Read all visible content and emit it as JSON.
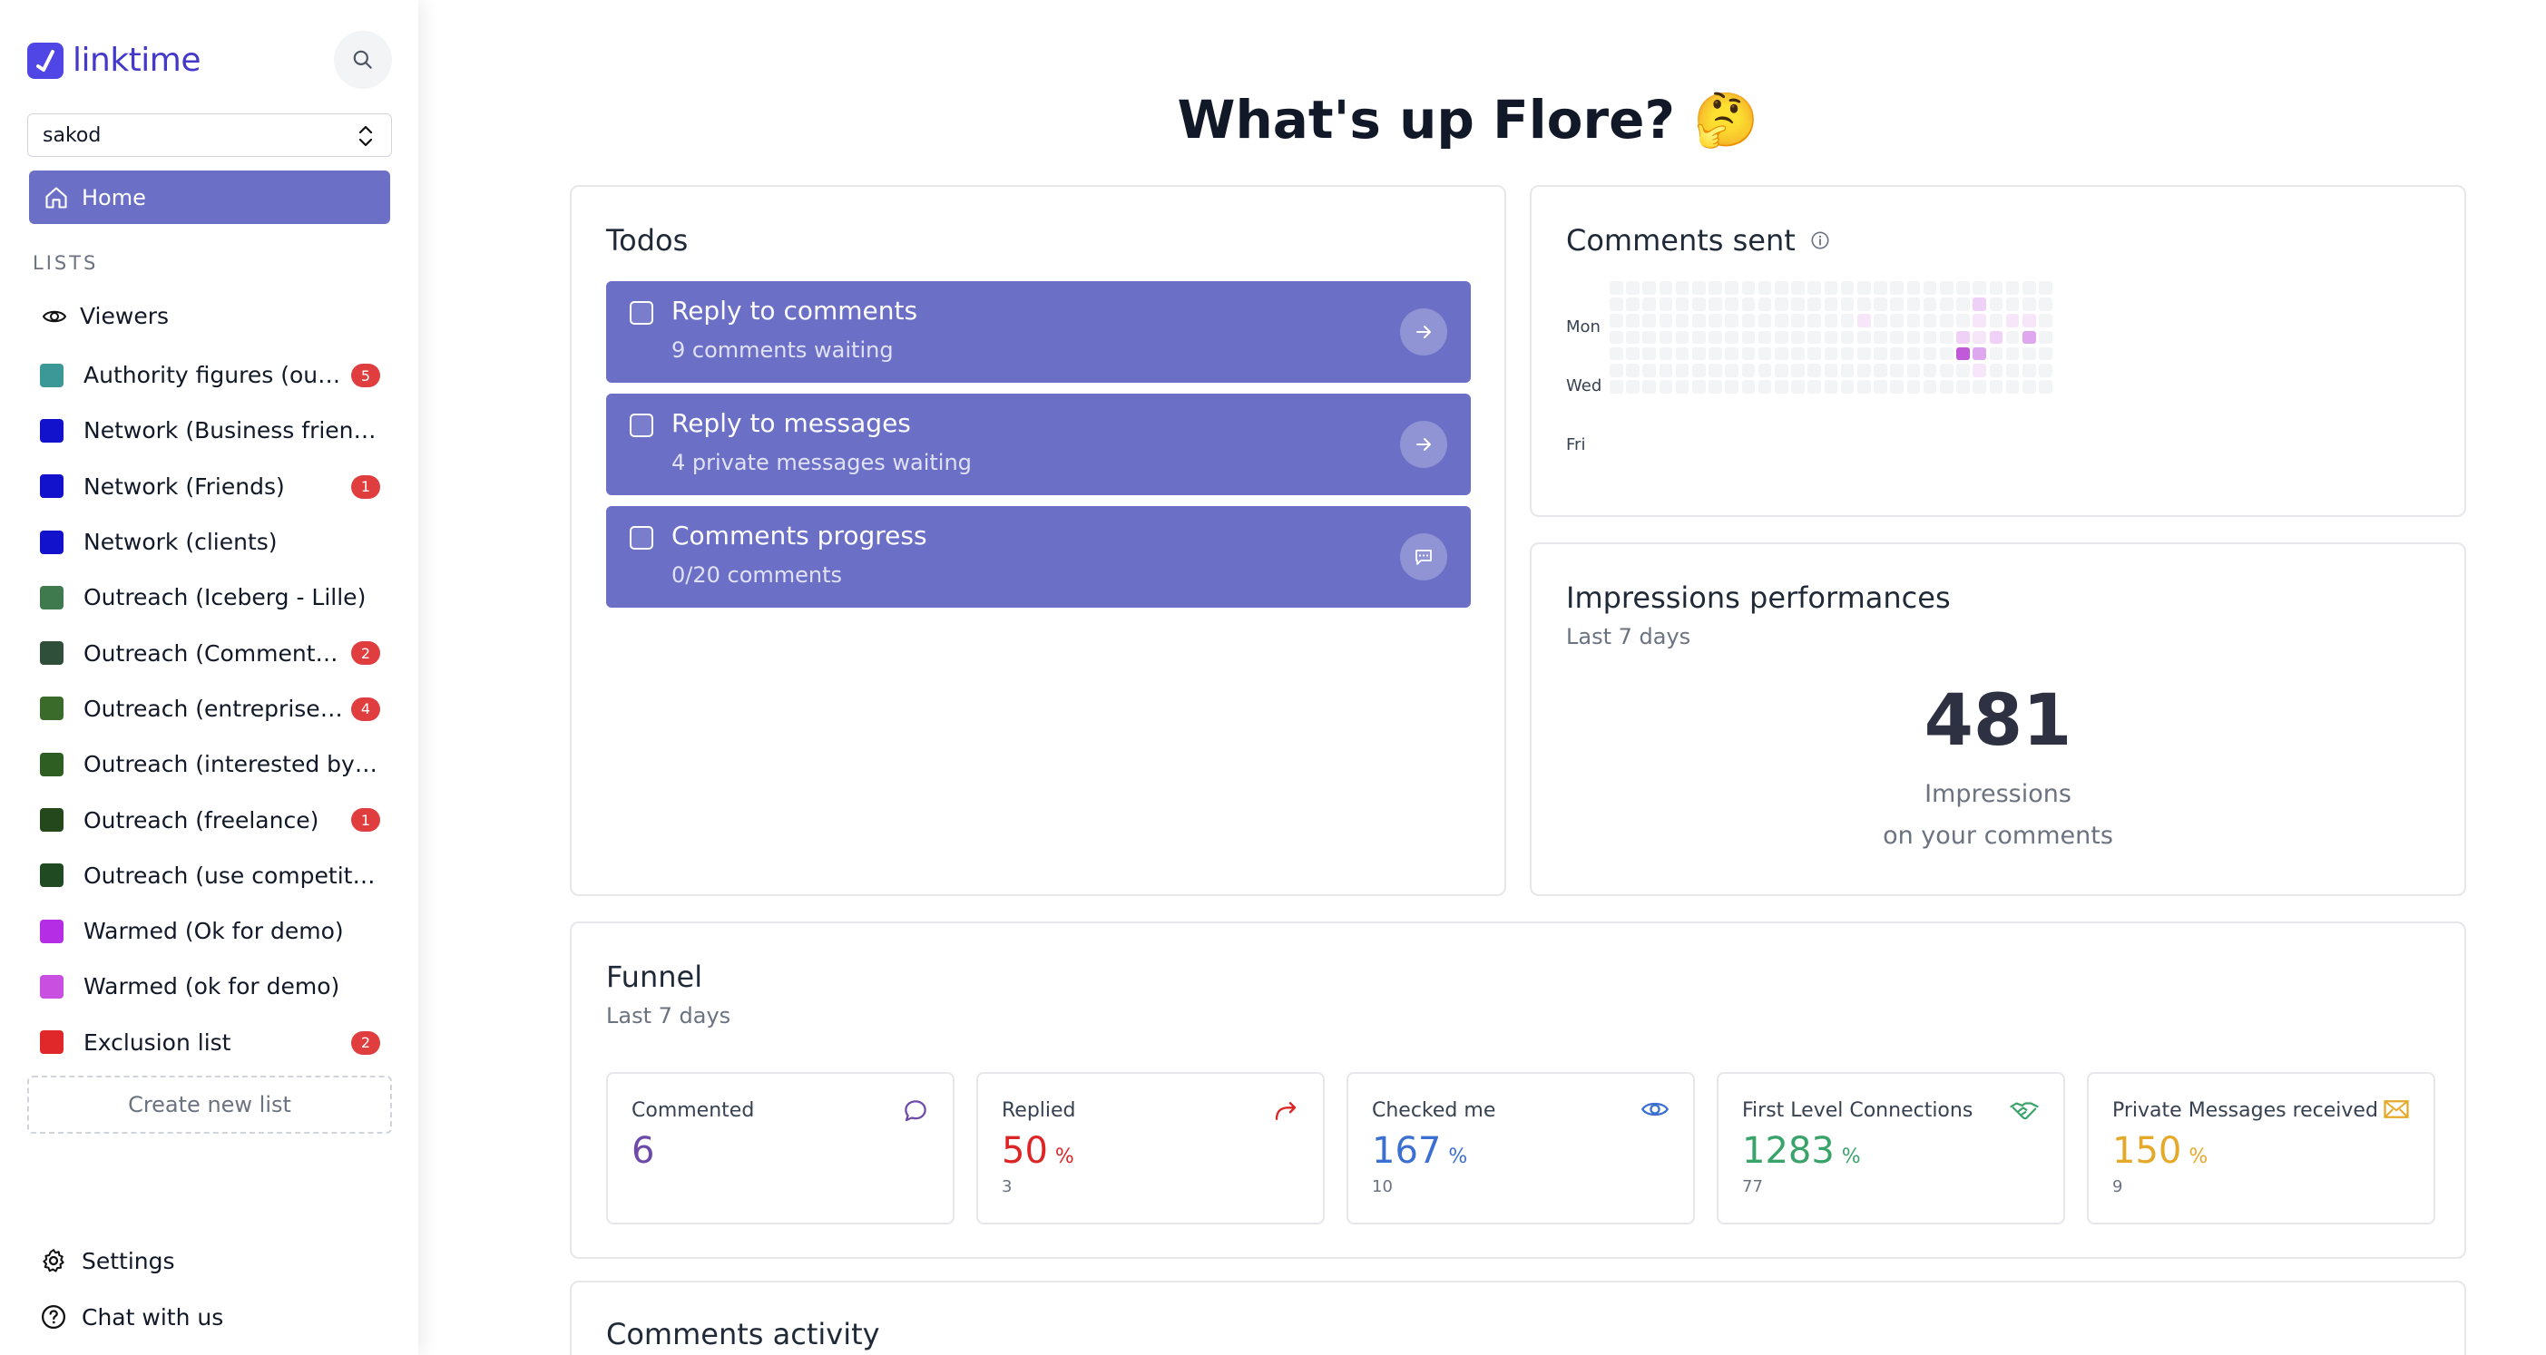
{
  "app": {
    "name": "linktime"
  },
  "workspace": {
    "value": "sakod"
  },
  "nav": {
    "home_label": "Home"
  },
  "lists": {
    "title": "LISTS",
    "viewers_label": "Viewers",
    "create_label": "Create new list",
    "items": [
      {
        "label": "Authority figures (outbound)",
        "display": "Authority figures (outb...",
        "color": "#3b9896",
        "badge": "5"
      },
      {
        "label": "Network (Business friends)",
        "display": "Network (Business friends)",
        "color": "#1212cc",
        "badge": ""
      },
      {
        "label": "Network (Friends)",
        "display": "Network (Friends)",
        "color": "#1212cc",
        "badge": "1"
      },
      {
        "label": "Network (clients)",
        "display": "Network (clients)",
        "color": "#1212cc",
        "badge": ""
      },
      {
        "label": "Outreach (Iceberg - Lille)",
        "display": "Outreach (Iceberg - Lille)",
        "color": "#3f7a4f",
        "badge": ""
      },
      {
        "label": "Outreach (Comments a...",
        "display": "Outreach (Comments a...",
        "color": "#2f4f3a",
        "badge": "2"
      },
      {
        "label": "Outreach (entreprises i...",
        "display": "Outreach (entreprises i...",
        "color": "#3a6b2a",
        "badge": "4"
      },
      {
        "label": "Outreach (interested by to...",
        "display": "Outreach (interested by to...",
        "color": "#2f5e22",
        "badge": ""
      },
      {
        "label": "Outreach (freelance)",
        "display": "Outreach (freelance)",
        "color": "#24471c",
        "badge": "1"
      },
      {
        "label": "Outreach (use competitor)",
        "display": "Outreach (use competitor)",
        "color": "#1f4a22",
        "badge": ""
      },
      {
        "label": "Warmed (Ok for demo)",
        "display": "Warmed (Ok for demo)",
        "color": "#b52ee6",
        "badge": ""
      },
      {
        "label": "Warmed (ok for demo)",
        "display": "Warmed (ok for demo)",
        "color": "#c84fe0",
        "badge": ""
      },
      {
        "label": "Exclusion list",
        "display": "Exclusion list",
        "color": "#e0282b",
        "badge": "2"
      }
    ]
  },
  "footer": {
    "settings_label": "Settings",
    "chat_label": "Chat with us"
  },
  "greeting": {
    "prefix": "What's up ",
    "name": "Flore",
    "suffix": "? 🤔"
  },
  "todos": {
    "title": "Todos",
    "items": [
      {
        "title": "Reply to comments",
        "subtitle": "9 comments waiting",
        "icon": "arrow-right-icon"
      },
      {
        "title": "Reply to messages",
        "subtitle": "4 private messages waiting",
        "icon": "arrow-right-icon"
      },
      {
        "title": "Comments progress",
        "subtitle": "0/20 comments",
        "icon": "message-square-icon"
      }
    ]
  },
  "comments_sent": {
    "title": "Comments sent",
    "day_labels": [
      "Mon",
      "Wed",
      "Fri"
    ],
    "highlighted_cells": [
      {
        "week": 22,
        "day": 1,
        "level": 2
      },
      {
        "week": 22,
        "day": 2,
        "level": 1
      },
      {
        "week": 15,
        "day": 2,
        "level": 1
      },
      {
        "week": 24,
        "day": 2,
        "level": 1
      },
      {
        "week": 25,
        "day": 2,
        "level": 1
      },
      {
        "week": 21,
        "day": 3,
        "level": 2
      },
      {
        "week": 22,
        "day": 3,
        "level": 1
      },
      {
        "week": 23,
        "day": 3,
        "level": 2
      },
      {
        "week": 25,
        "day": 3,
        "level": 3
      },
      {
        "week": 21,
        "day": 4,
        "level": 4
      },
      {
        "week": 22,
        "day": 4,
        "level": 3
      },
      {
        "week": 22,
        "day": 5,
        "level": 1
      }
    ]
  },
  "impressions": {
    "title": "Impressions performances",
    "subtitle": "Last 7 days",
    "value": "481",
    "label1": "Impressions",
    "label2": "on your comments"
  },
  "funnel": {
    "title": "Funnel",
    "subtitle": "Last 7 days",
    "cards": [
      {
        "label": "Commented",
        "value": "6",
        "pct": "",
        "sub": "",
        "color": "#6d4aa8",
        "icon": "comment-icon"
      },
      {
        "label": "Replied",
        "value": "50",
        "pct": "%",
        "sub": "3",
        "color": "#dc2626",
        "icon": "reply-icon"
      },
      {
        "label": "Checked me",
        "value": "167",
        "pct": "%",
        "sub": "10",
        "color": "#3b6fd1",
        "icon": "eye-icon"
      },
      {
        "label": "First Level Connections",
        "value": "1283",
        "pct": "%",
        "sub": "77",
        "color": "#3aa36a",
        "icon": "handshake-icon"
      },
      {
        "label": "Private Messages received",
        "value": "150",
        "pct": "%",
        "sub": "9",
        "color": "#e5a92a",
        "icon": "envelope-icon"
      }
    ]
  },
  "comments_activity": {
    "title": "Comments activity"
  },
  "colors": {
    "accent": "#6b6fc6",
    "brand": "#4f46e5",
    "badge": "#e03e3e"
  }
}
